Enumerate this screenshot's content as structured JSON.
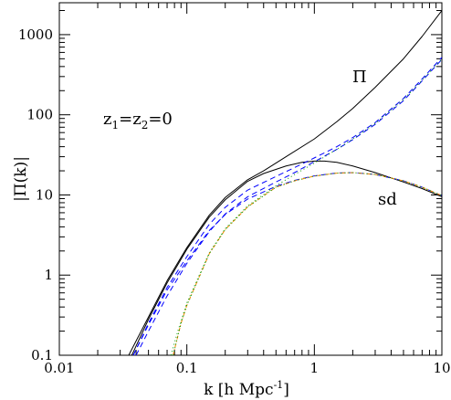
{
  "chart_data": {
    "type": "line",
    "xlabel_main": "k [h Mpc",
    "xlabel_sup": "-1",
    "xlabel_end": "]",
    "ylabel": "|Π(k)|",
    "xscale": "log",
    "yscale": "log",
    "xlim": [
      0.01,
      10
    ],
    "ylim": [
      0.1,
      2500
    ],
    "x_ticks": [
      {
        "value": 0.01,
        "label": "0.01"
      },
      {
        "value": 0.1,
        "label": "0.1"
      },
      {
        "value": 1,
        "label": "1"
      },
      {
        "value": 10,
        "label": "10"
      }
    ],
    "y_ticks": [
      {
        "value": 0.1,
        "label": "0.1"
      },
      {
        "value": 1,
        "label": "1"
      },
      {
        "value": 10,
        "label": "10"
      },
      {
        "value": 100,
        "label": "100"
      },
      {
        "value": 1000,
        "label": "1000"
      }
    ],
    "grid": false,
    "annotations": {
      "z_main": "z",
      "z_sub1": "1",
      "z_eq1": "=z",
      "z_sub2": "2",
      "z_eq2": "=0",
      "pi_label": "Π",
      "sd_label": "sd"
    },
    "series": [
      {
        "color": "#000000",
        "dash": "solid",
        "x": [
          0.035,
          0.05,
          0.07,
          0.1,
          0.15,
          0.2,
          0.3,
          0.4,
          0.6,
          1,
          1.5,
          2,
          3,
          5,
          7,
          10
        ],
        "y": [
          0.1,
          0.3,
          0.85,
          2.2,
          5.6,
          9.3,
          15.5,
          20,
          30,
          50,
          82,
          120,
          220,
          500,
          950,
          2000
        ]
      },
      {
        "color": "#000000",
        "dash": "solid",
        "x": [
          0.037,
          0.05,
          0.07,
          0.1,
          0.15,
          0.2,
          0.3,
          0.4,
          0.6,
          0.8,
          1,
          1.2,
          1.5,
          2,
          3,
          5,
          7,
          10
        ],
        "y": [
          0.1,
          0.28,
          0.8,
          2.1,
          5.3,
          8.7,
          14.8,
          18.5,
          23,
          25.5,
          26.5,
          26.5,
          25.5,
          23,
          19,
          14.5,
          12,
          9.5
        ]
      },
      {
        "color": "#0000ff",
        "dash": "6,4",
        "x": [
          0.038,
          0.05,
          0.07,
          0.1,
          0.15,
          0.2,
          0.3,
          0.5,
          0.7,
          1,
          1.5,
          2,
          3,
          5,
          7,
          10
        ],
        "y": [
          0.1,
          0.25,
          0.7,
          1.7,
          4.3,
          7,
          11.5,
          17,
          22,
          29,
          40,
          52,
          80,
          160,
          280,
          520
        ]
      },
      {
        "color": "#0000ff",
        "dash": "6,4",
        "x": [
          0.04,
          0.05,
          0.07,
          0.1,
          0.15,
          0.2,
          0.3,
          0.5,
          0.7,
          1,
          1.5,
          2,
          3,
          5,
          7,
          10
        ],
        "y": [
          0.1,
          0.2,
          0.55,
          1.4,
          3.5,
          5.8,
          9.5,
          14.5,
          19,
          26,
          37,
          49,
          76,
          150,
          265,
          490
        ]
      },
      {
        "color": "#0000ff",
        "dash": "6,4",
        "x": [
          0.038,
          0.05,
          0.07,
          0.1,
          0.15,
          0.2,
          0.3,
          0.5,
          0.7,
          1,
          1.5,
          2,
          3,
          5,
          7,
          10
        ],
        "y": [
          0.1,
          0.24,
          0.65,
          1.5,
          3.6,
          5.7,
          8.9,
          12.8,
          15.2,
          17.3,
          18.8,
          19,
          18,
          15,
          12.5,
          9.8
        ]
      },
      {
        "color": "#009900",
        "dash": "1,3",
        "x": [
          0.075,
          0.085,
          0.1,
          0.15,
          0.2,
          0.3,
          0.5,
          0.7,
          1,
          1.5,
          2,
          3,
          5,
          7,
          10
        ],
        "y": [
          0.1,
          0.2,
          0.45,
          1.9,
          3.8,
          7.3,
          13,
          18,
          25,
          37,
          50,
          78,
          155,
          270,
          500
        ]
      },
      {
        "color": "#ff8800",
        "dash": "4,2,1,2",
        "x": [
          0.078,
          0.09,
          0.1,
          0.15,
          0.2,
          0.3,
          0.5,
          0.7,
          1,
          1.5,
          2,
          3,
          5,
          7,
          10
        ],
        "y": [
          0.1,
          0.25,
          0.42,
          1.85,
          3.7,
          7.1,
          12.5,
          15,
          17.2,
          18.7,
          19,
          18,
          15,
          12.5,
          9.8
        ]
      },
      {
        "color": "#009900",
        "dash": "1,3",
        "x": [
          0.078,
          0.09,
          0.1,
          0.15,
          0.2,
          0.3,
          0.5,
          0.7,
          1,
          1.5,
          2,
          3,
          5,
          7,
          10
        ],
        "y": [
          0.1,
          0.25,
          0.42,
          1.85,
          3.7,
          7.1,
          12.5,
          15,
          17.2,
          18.7,
          19,
          18,
          15,
          12.5,
          9.8
        ]
      }
    ]
  }
}
